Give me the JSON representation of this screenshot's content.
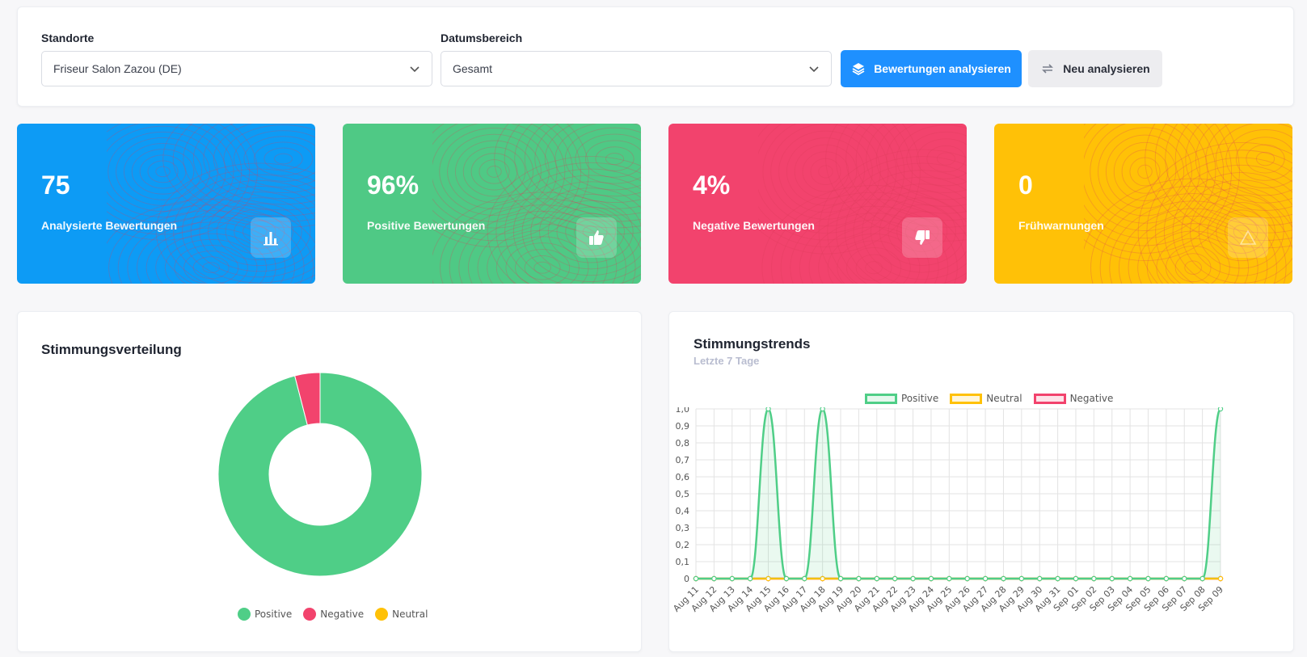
{
  "filters": {
    "location_label": "Standorte",
    "location_value": "Friseur Salon Zazou (DE)",
    "date_label": "Datumsbereich",
    "date_value": "Gesamt",
    "analyze_button": "Bewertungen analysieren",
    "reanalyze_button": "Neu analysieren"
  },
  "stats": [
    {
      "value": "75",
      "label": "Analysierte Bewertungen",
      "icon": "bar-chart-icon",
      "color": "#0d9bf5"
    },
    {
      "value": "96%",
      "label": "Positive Bewertungen",
      "icon": "thumbs-up-icon",
      "color": "#4fc985"
    },
    {
      "value": "4%",
      "label": "Negative Bewertungen",
      "icon": "thumbs-down-icon",
      "color": "#f2436d"
    },
    {
      "value": "0",
      "label": "Frühwarnungen",
      "icon": "warning-icon",
      "color": "#ffc107"
    }
  ],
  "distribution": {
    "title": "Stimmungsverteilung",
    "legend": [
      "Positive",
      "Negative",
      "Neutral"
    ]
  },
  "trends": {
    "title": "Stimmungstrends",
    "subtitle": "Letzte 7 Tage",
    "legend": [
      "Positive",
      "Neutral",
      "Negative"
    ]
  },
  "colors": {
    "positive": "#4fce87",
    "negative": "#f2436d",
    "neutral": "#ffc107",
    "primary": "#1e90ff"
  },
  "chart_data": [
    {
      "type": "pie",
      "variant": "doughnut",
      "categories": [
        "Positive",
        "Negative",
        "Neutral"
      ],
      "values": [
        96,
        4,
        0
      ],
      "title": "Stimmungsverteilung",
      "legend_position": "bottom"
    },
    {
      "type": "line",
      "title": "Stimmungstrends",
      "subtitle": "Letzte 7 Tage",
      "categories": [
        "Aug 11",
        "Aug 12",
        "Aug 13",
        "Aug 14",
        "Aug 15",
        "Aug 16",
        "Aug 17",
        "Aug 18",
        "Aug 19",
        "Aug 20",
        "Aug 21",
        "Aug 22",
        "Aug 23",
        "Aug 24",
        "Aug 25",
        "Aug 26",
        "Aug 27",
        "Aug 28",
        "Aug 29",
        "Aug 30",
        "Aug 31",
        "Sep 01",
        "Sep 02",
        "Sep 03",
        "Sep 04",
        "Sep 05",
        "Sep 06",
        "Sep 07",
        "Sep 08",
        "Sep 09"
      ],
      "series": [
        {
          "name": "Positive",
          "values": [
            0,
            0,
            0,
            0,
            1,
            0,
            0,
            1,
            0,
            0,
            0,
            0,
            0,
            0,
            0,
            0,
            0,
            0,
            0,
            0,
            0,
            0,
            0,
            0,
            0,
            0,
            0,
            0,
            0,
            1
          ]
        },
        {
          "name": "Neutral",
          "values": [
            0,
            0,
            0,
            0,
            0,
            0,
            0,
            0,
            0,
            0,
            0,
            0,
            0,
            0,
            0,
            0,
            0,
            0,
            0,
            0,
            0,
            0,
            0,
            0,
            0,
            0,
            0,
            0,
            0,
            0
          ]
        },
        {
          "name": "Negative",
          "values": [
            0,
            0,
            0,
            0,
            0,
            0,
            0,
            0,
            0,
            0,
            0,
            0,
            0,
            0,
            0,
            0,
            0,
            0,
            0,
            0,
            0,
            0,
            0,
            0,
            0,
            0,
            0,
            0,
            0,
            0
          ]
        }
      ],
      "yticks": [
        "0",
        "0,1",
        "0,2",
        "0,3",
        "0,4",
        "0,5",
        "0,6",
        "0,7",
        "0,8",
        "0,9",
        "1,0"
      ],
      "ylim": [
        0,
        1
      ],
      "grid": true,
      "legend_position": "top"
    }
  ]
}
